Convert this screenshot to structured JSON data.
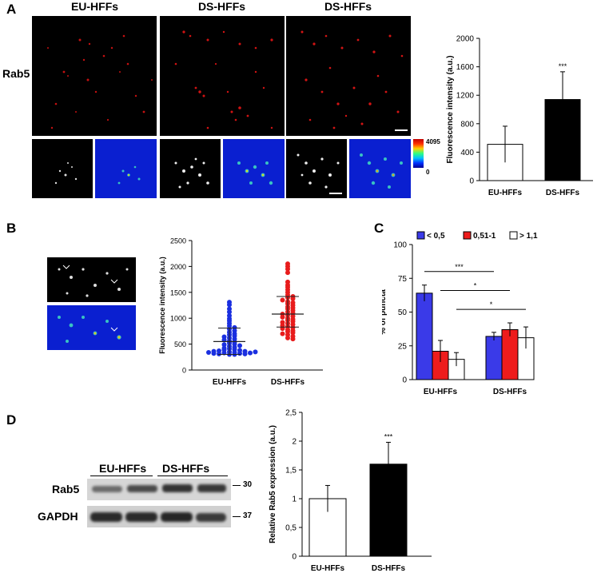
{
  "panels": {
    "a": {
      "label": "A",
      "headers": [
        "EU-HFFs",
        "DS-HFFs",
        "DS-HFFs"
      ],
      "row_label": "Rab5",
      "colorbar_max": "4095",
      "colorbar_min": "0"
    },
    "b": {
      "label": "B"
    },
    "c": {
      "label": "C",
      "legend": [
        "< 0,5",
        "0,51-1",
        "> 1,1"
      ]
    },
    "d": {
      "label": "D",
      "lane_labels": [
        "EU-HFFs",
        "DS-HFFs"
      ],
      "bands": [
        "Rab5",
        "GAPDH"
      ],
      "markers": [
        "30",
        "37"
      ]
    }
  },
  "colors": {
    "series_lt05": "#3a3ae8",
    "series_051_1": "#ee1c1c",
    "series_gt11": "#ffffff",
    "eu_dots": "#1a2fe0",
    "ds_dots": "#e81c1c"
  },
  "chart_data": [
    {
      "id": "chart-a",
      "type": "bar",
      "categories": [
        "EU-HFFs",
        "DS-HFFs"
      ],
      "values": [
        510,
        1140
      ],
      "errors": [
        255,
        390
      ],
      "fills": [
        "#ffffff",
        "#000000"
      ],
      "significance": [
        "",
        "***"
      ],
      "ylabel": "Fluorescence intensity (a.u.)",
      "ylim": [
        0,
        2000
      ],
      "yticks": [
        "0",
        "400",
        "800",
        "1200",
        "1600",
        "2000"
      ]
    },
    {
      "id": "chart-b",
      "type": "scatter",
      "categories": [
        "EU-HFFs",
        "DS-HFFs"
      ],
      "ylabel": "Fluorescence intensity (a.u.)",
      "ylim": [
        0,
        2500
      ],
      "yticks": [
        "0",
        "500",
        "1000",
        "1500",
        "2000",
        "2500"
      ],
      "means": [
        550,
        1080
      ],
      "sd_bounds": [
        [
          300,
          810
        ],
        [
          830,
          1420
        ]
      ],
      "series": [
        {
          "category": "EU-HFFs",
          "values": [
            1310,
            1260,
            1180,
            1120,
            1050,
            990,
            950,
            900,
            850,
            820,
            790,
            760,
            730,
            700,
            680,
            660,
            640,
            620,
            600,
            580,
            560,
            540,
            520,
            500,
            490,
            470,
            460,
            440,
            420,
            410,
            400,
            390,
            380,
            370,
            360,
            350,
            340,
            330,
            320,
            310,
            300,
            300,
            310,
            320,
            330,
            340,
            350,
            360
          ]
        },
        {
          "category": "DS-HFFs",
          "values": [
            2050,
            2000,
            1950,
            1880,
            1700,
            1640,
            1600,
            1550,
            1500,
            1450,
            1420,
            1400,
            1380,
            1350,
            1320,
            1300,
            1280,
            1250,
            1220,
            1200,
            1180,
            1150,
            1120,
            1100,
            1080,
            1060,
            1040,
            1020,
            1000,
            980,
            960,
            940,
            920,
            900,
            880,
            860,
            840,
            820,
            800,
            780,
            760,
            740,
            720,
            700,
            680,
            650,
            620,
            600
          ]
        }
      ]
    },
    {
      "id": "chart-c",
      "type": "bar",
      "categories": [
        "EU-HFFs",
        "DS-HFFs"
      ],
      "series": [
        {
          "name": "< 0,5",
          "values": [
            64,
            32
          ],
          "errors": [
            6,
            3
          ]
        },
        {
          "name": "0,51-1",
          "values": [
            21,
            37
          ],
          "errors": [
            8,
            5
          ]
        },
        {
          "name": "> 1,1",
          "values": [
            15,
            31
          ],
          "errors": [
            5,
            8
          ]
        }
      ],
      "significance": [
        "***",
        "*",
        "*"
      ],
      "ylabel": "% of puncta",
      "ylim": [
        0,
        100
      ],
      "yticks": [
        "0",
        "25",
        "50",
        "75",
        "100"
      ]
    },
    {
      "id": "chart-d",
      "type": "bar",
      "categories": [
        "EU-HFFs",
        "DS-HFFs"
      ],
      "values": [
        1.0,
        1.6
      ],
      "errors": [
        0.23,
        0.38
      ],
      "fills": [
        "#ffffff",
        "#000000"
      ],
      "significance": [
        "",
        "***"
      ],
      "ylabel": "Relative Rab5 expression (a.u.)",
      "ylim": [
        0,
        2.5
      ],
      "yticks": [
        "0",
        "0,5",
        "1",
        "1,5",
        "2",
        "2,5"
      ]
    }
  ]
}
